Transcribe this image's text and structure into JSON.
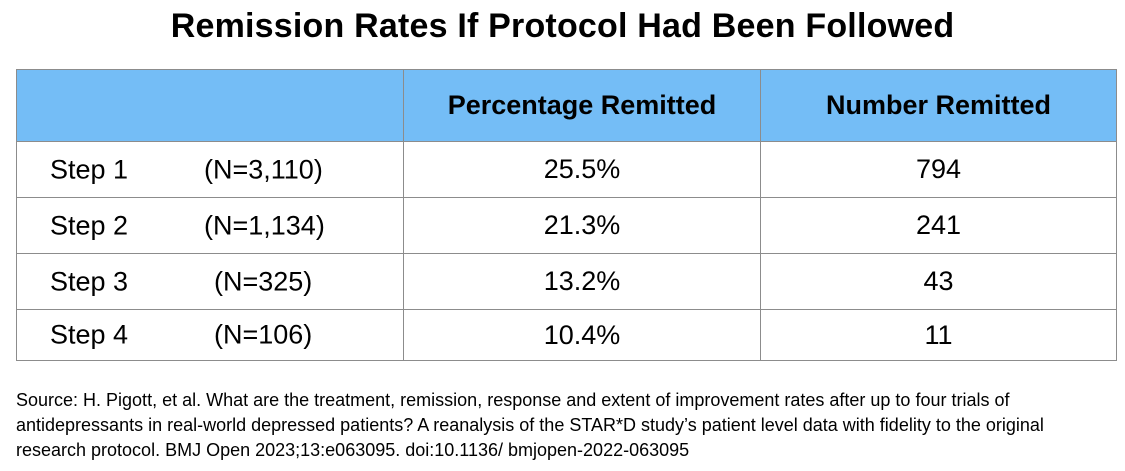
{
  "title": "Remission Rates If Protocol Had Been Followed",
  "table": {
    "headers": [
      "",
      "Percentage Remitted",
      "Number Remitted"
    ],
    "rows": [
      {
        "step": "Step 1",
        "n": "(N=3,110)",
        "percentage": "25.5%",
        "number": "794"
      },
      {
        "step": "Step 2",
        "n": "(N=1,134)",
        "percentage": "21.3%",
        "number": "241"
      },
      {
        "step": "Step 3",
        "n": "(N=325)",
        "percentage": "13.2%",
        "number": "43"
      },
      {
        "step": "Step 4",
        "n": "(N=106)",
        "percentage": "10.4%",
        "number": "11"
      }
    ]
  },
  "source": "Source: H. Pigott, et al. What are the treatment, remission, response and extent of improvement rates after up to four trials of antidepressants in real-world depressed patients? A reanalysis of the STAR*D study’s patient level data with fidelity to the original research protocol. BMJ Open 2023;13:e063095. doi:10.1136/ bmjopen-2022-063095",
  "colors": {
    "header_background": "#74bdf6",
    "border": "#8c8c8c",
    "text": "#000000"
  }
}
